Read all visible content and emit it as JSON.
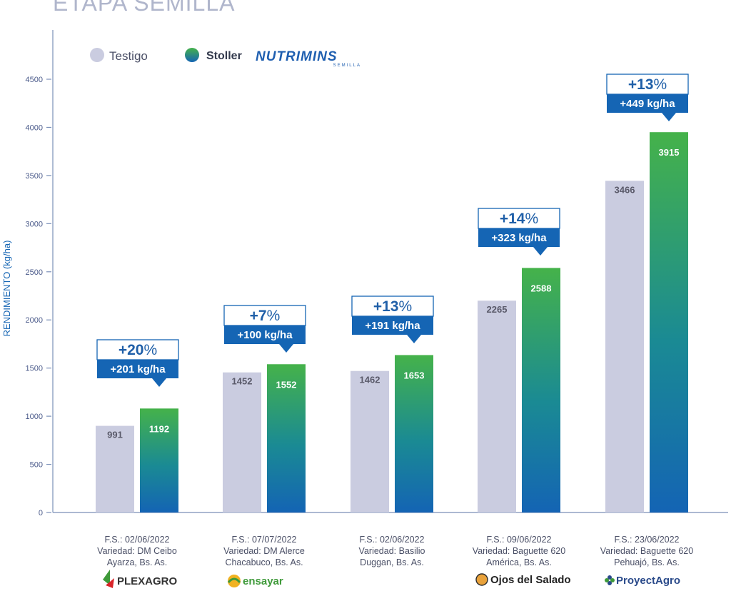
{
  "page": {
    "title": "ETAPA SEMILLA"
  },
  "colors": {
    "testigo": "#cacce0",
    "treated_top": "#45b24a",
    "treated_mid": "#1a8a94",
    "treated_bottom": "#1464b4",
    "accent_blue": "#1565b4",
    "axis": "#7a8fb8",
    "value_testigo": "#5a5a6a",
    "value_treated": "#ffffff"
  },
  "legend": {
    "testigo_label": "Testigo",
    "treated_brand": "Stoller",
    "treated_logo": "NUTRIMINS",
    "treated_logo_sub": "SEMILLA"
  },
  "chart_data": {
    "type": "bar",
    "title": "ETAPA SEMILLA",
    "ylabel": "RENDIMIENTO (kg/ha)",
    "xlabel": "",
    "ylim": [
      0,
      4500
    ],
    "yticks": [
      0,
      500,
      1000,
      1500,
      2000,
      2500,
      3000,
      3500,
      4000,
      4500
    ],
    "categories": [
      {
        "lines": [
          "F.S.: 02/06/2022",
          "Variedad: DM Ceibo",
          "Ayarza, Bs. As."
        ],
        "logo": "PLEXAGRO",
        "logo_color": "#333333"
      },
      {
        "lines": [
          "F.S.: 07/07/2022",
          "Variedad: DM Alerce",
          "Chacabuco, Bs. As."
        ],
        "logo": "ensayar",
        "logo_color": "#3f9a3a"
      },
      {
        "lines": [
          "F.S.: 02/06/2022",
          "Variedad: Basilio",
          "Duggan, Bs. As."
        ],
        "logo": "",
        "logo_color": "#333333"
      },
      {
        "lines": [
          "F.S.: 09/06/2022",
          "Variedad: Baguette 620",
          "América, Bs. As."
        ],
        "logo": "Ojos del Salado",
        "logo_color": "#222222"
      },
      {
        "lines": [
          "F.S.: 23/06/2022",
          "Variedad: Baguette 620",
          "Pehuajó, Bs. As."
        ],
        "logo": "ProyectAgro",
        "logo_color": "#2a4a8a"
      }
    ],
    "series": [
      {
        "name": "Testigo",
        "values": [
          991,
          1452,
          1462,
          2265,
          3466
        ]
      },
      {
        "name": "Stoller NUTRIMINS SEMILLA",
        "values": [
          1192,
          1552,
          1653,
          2588,
          3915
        ]
      }
    ],
    "bar_tops": {
      "testigo": [
        900,
        1455,
        1470,
        2200,
        3445
      ],
      "treated": [
        1080,
        1540,
        1635,
        2540,
        3950
      ]
    },
    "annotations": [
      {
        "pct_value": "+20",
        "pct_sign": "%",
        "kg": "+201 kg/ha"
      },
      {
        "pct_value": "+7",
        "pct_sign": "%",
        "kg": "+100 kg/ha"
      },
      {
        "pct_value": "+13",
        "pct_sign": "%",
        "kg": "+191 kg/ha"
      },
      {
        "pct_value": "+14",
        "pct_sign": "%",
        "kg": "+323 kg/ha"
      },
      {
        "pct_value": "+13",
        "pct_sign": "%",
        "kg": "+449 kg/ha"
      }
    ]
  }
}
